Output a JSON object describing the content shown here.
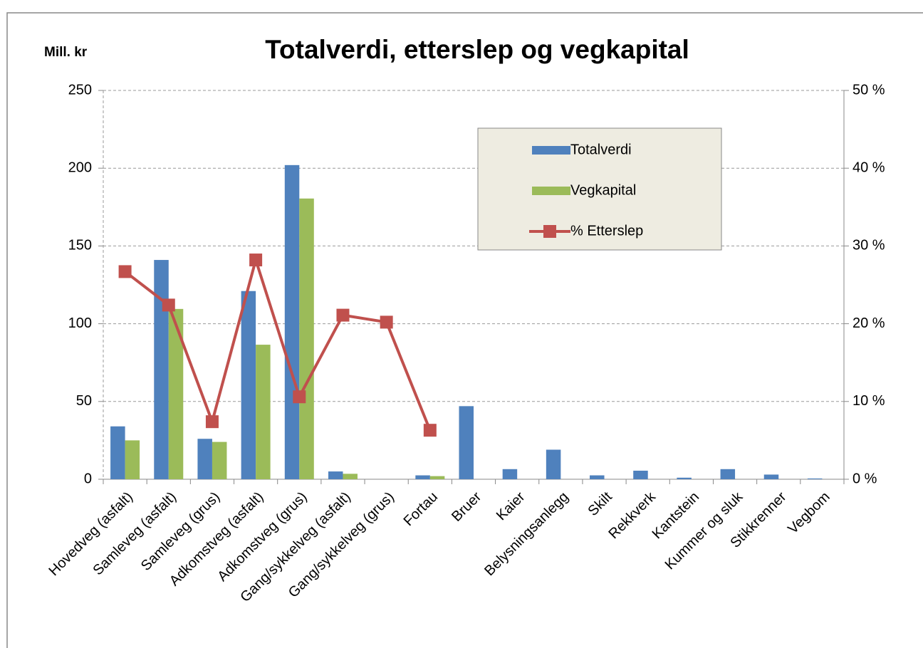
{
  "chart_data": {
    "type": "bar",
    "title": "Totalverdi, etterslep og vegkapital",
    "y_label": "Mill. kr",
    "categories": [
      "Hovedveg (asfalt)",
      "Samleveg (asfalt)",
      "Samleveg (grus)",
      "Adkomstveg (asfalt)",
      "Adkomstveg (grus)",
      "Gang/sykkelveg (asfalt)",
      "Gang/sykkelveg (grus)",
      "Fortau",
      "Bruer",
      "Kaier",
      "Belysningsanlegg",
      "Skilt",
      "Rekkverk",
      "Kantstein",
      "Kummer og sluk",
      "Stikkrenner",
      "Vegbom"
    ],
    "series": [
      {
        "name": "Totalverdi",
        "type": "bar",
        "color": "#4f81bd",
        "values": [
          34,
          141,
          26,
          121,
          202,
          5,
          0,
          2.5,
          47,
          6.5,
          19,
          2.5,
          5.5,
          1,
          6.5,
          3,
          0.5
        ]
      },
      {
        "name": "Vegkapital",
        "type": "bar",
        "color": "#9bbb59",
        "values": [
          25,
          109.5,
          24,
          86.5,
          180.5,
          3.5,
          0,
          2,
          null,
          null,
          null,
          null,
          null,
          null,
          null,
          null,
          null
        ]
      },
      {
        "name": "% Etterslep",
        "type": "line",
        "axis": "y2",
        "color": "#c0504d",
        "values": [
          26.7,
          22.4,
          7.4,
          28.2,
          10.6,
          21.1,
          20.2,
          6.3,
          null,
          null,
          null,
          null,
          null,
          null,
          null,
          null,
          null
        ]
      }
    ],
    "ylim": [
      0,
      250
    ],
    "yticks": [
      0,
      50,
      100,
      150,
      200,
      250
    ],
    "y2lim": [
      0,
      50
    ],
    "y2ticks": [
      {
        "value": 0,
        "label": "0 %"
      },
      {
        "value": 10,
        "label": "10 %"
      },
      {
        "value": 20,
        "label": "20 %"
      },
      {
        "value": 30,
        "label": "30 %"
      },
      {
        "value": 40,
        "label": "40 %"
      },
      {
        "value": 50,
        "label": "50 %"
      }
    ],
    "grid": true,
    "legend": "top-right"
  }
}
